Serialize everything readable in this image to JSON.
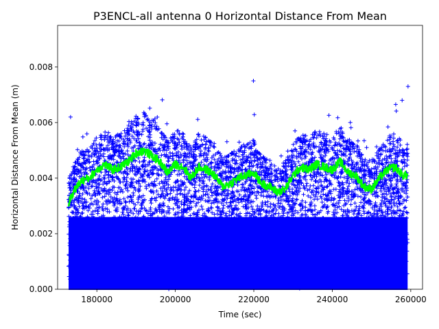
{
  "chart_data": {
    "type": "scatter",
    "title": "P3ENCL-all antenna 0 Horizontal Distance From Mean",
    "xlabel": "Time (sec)",
    "ylabel": "Horizontal Distance From Mean (m)",
    "xlim": [
      170000,
      263000
    ],
    "ylim": [
      0,
      0.0095
    ],
    "x_ticks": [
      180000,
      200000,
      220000,
      240000,
      260000
    ],
    "x_tick_labels": [
      "180000",
      "200000",
      "220000",
      "240000",
      "260000"
    ],
    "y_ticks": [
      0.0,
      0.002,
      0.004,
      0.006,
      0.008
    ],
    "y_tick_labels": [
      "0.000",
      "0.002",
      "0.004",
      "0.006",
      "0.008"
    ],
    "grid": false,
    "legend": "none",
    "series": [
      {
        "marker": "+",
        "color": "#0000ff",
        "x_range": [
          172800,
          259200
        ],
        "notable_points": [
          {
            "x": 173300,
            "y": 0.0062
          },
          {
            "x": 219900,
            "y": 0.0075
          },
          {
            "x": 259300,
            "y": 0.0073
          },
          {
            "x": 257800,
            "y": 0.0068
          }
        ]
      },
      {
        "marker": "line",
        "color": "#00ff00",
        "x": [
          172800,
          174000,
          176000,
          178000,
          180000,
          182000,
          184000,
          186000,
          188000,
          190000,
          192000,
          194000,
          196000,
          198000,
          200000,
          202000,
          204000,
          206000,
          208000,
          210000,
          212000,
          214000,
          216000,
          218000,
          220000,
          222000,
          224000,
          226000,
          228000,
          230000,
          232000,
          234000,
          236000,
          238000,
          240000,
          242000,
          244000,
          246000,
          248000,
          250000,
          252000,
          254000,
          256000,
          258000,
          259200
        ],
        "y": [
          0.0031,
          0.0035,
          0.0039,
          0.004,
          0.0043,
          0.0045,
          0.0043,
          0.0044,
          0.0046,
          0.0049,
          0.005,
          0.0048,
          0.0046,
          0.0042,
          0.0045,
          0.0044,
          0.004,
          0.0044,
          0.0043,
          0.0041,
          0.0037,
          0.0038,
          0.004,
          0.0041,
          0.0042,
          0.0038,
          0.0037,
          0.0035,
          0.0036,
          0.0041,
          0.0044,
          0.0043,
          0.0045,
          0.0044,
          0.0043,
          0.0046,
          0.0042,
          0.0041,
          0.0037,
          0.0036,
          0.004,
          0.0043,
          0.0044,
          0.0041,
          0.0041
        ]
      }
    ]
  }
}
